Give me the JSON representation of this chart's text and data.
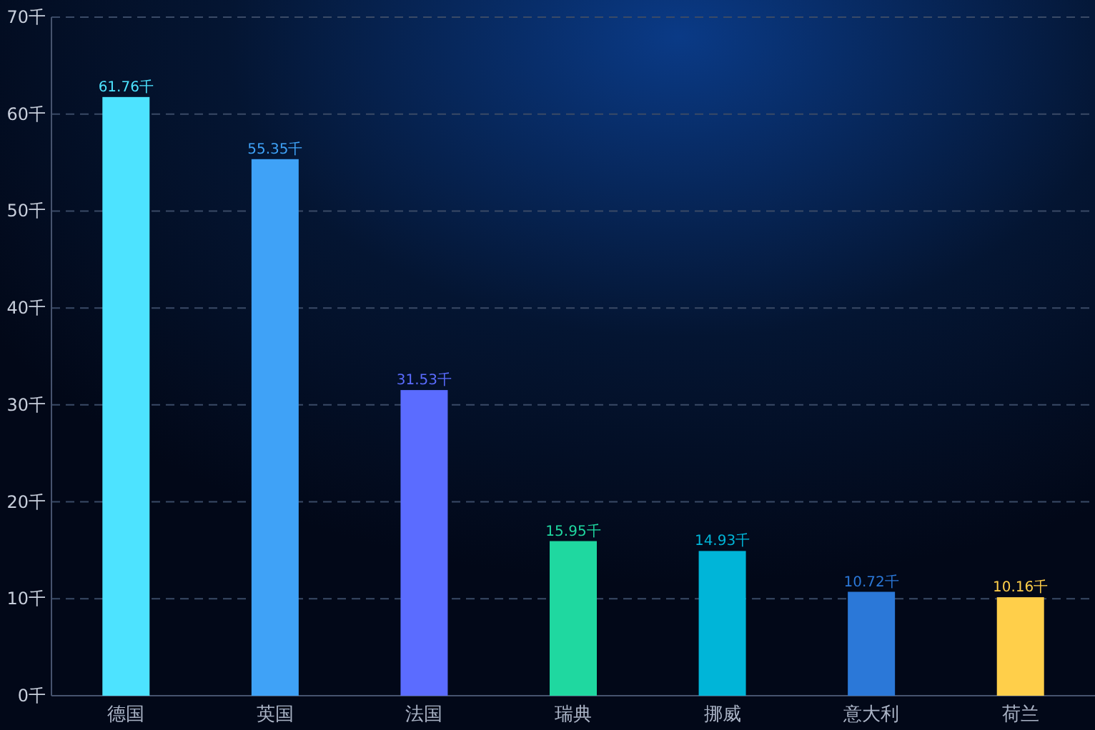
{
  "chart_data": {
    "type": "bar",
    "categories": [
      "德国",
      "英国",
      "法国",
      "瑞典",
      "挪威",
      "意大利",
      "荷兰"
    ],
    "values": [
      61.76,
      55.35,
      31.53,
      15.95,
      14.93,
      10.72,
      10.16
    ],
    "colors": [
      "#4de3ff",
      "#3fa2f7",
      "#5b6cff",
      "#1fd8a0",
      "#00b5d8",
      "#2b78d8",
      "#ffcf4a"
    ],
    "value_labels": [
      "61.76千",
      "55.35千",
      "31.53千",
      "15.95千",
      "14.93千",
      "10.72千",
      "10.16千"
    ],
    "ylim": [
      0,
      70
    ],
    "yticks": [
      {
        "value": 0,
        "label": "0千"
      },
      {
        "value": 10,
        "label": "10千"
      },
      {
        "value": 20,
        "label": "20千"
      },
      {
        "value": 30,
        "label": "30千"
      },
      {
        "value": 40,
        "label": "40千"
      },
      {
        "value": 50,
        "label": "50千"
      },
      {
        "value": 60,
        "label": "60千"
      },
      {
        "value": 70,
        "label": "70千"
      }
    ],
    "grid": "y"
  }
}
